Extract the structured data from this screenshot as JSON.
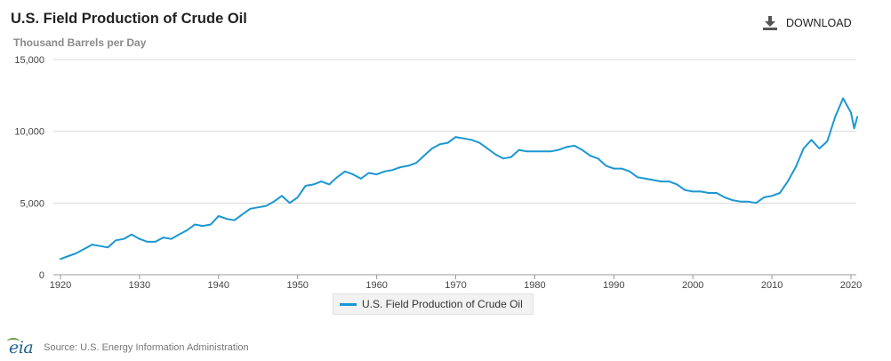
{
  "header": {
    "title": "U.S. Field Production of Crude Oil",
    "subtitle": "Thousand Barrels per Day",
    "download_label": "DOWNLOAD",
    "download_icon": "download-arrow-icon"
  },
  "footer": {
    "logo_text": "eia",
    "source_text": "Source: U.S. Energy Information Administration"
  },
  "colors": {
    "series": "#1a97d2",
    "grid": "#d8d8d8",
    "axis": "#999999"
  },
  "chart_data": {
    "type": "line",
    "title": "U.S. Field Production of Crude Oil",
    "ylabel": "Thousand Barrels per Day",
    "xlim": [
      1920,
      2020.8
    ],
    "ylim": [
      0,
      15000
    ],
    "x_ticks": [
      1920,
      1930,
      1940,
      1950,
      1960,
      1970,
      1980,
      1990,
      2000,
      2010,
      2020
    ],
    "y_ticks": [
      0,
      5000,
      10000,
      15000
    ],
    "y_tick_labels": [
      "0",
      "5,000",
      "10,000",
      "15,000"
    ],
    "grid": true,
    "legend": "bottom-center",
    "series": [
      {
        "name": "U.S. Field Production of Crude Oil",
        "x": [
          1920,
          1921,
          1922,
          1923,
          1924,
          1925,
          1926,
          1927,
          1928,
          1929,
          1930,
          1931,
          1932,
          1933,
          1934,
          1935,
          1936,
          1937,
          1938,
          1939,
          1940,
          1941,
          1942,
          1943,
          1944,
          1945,
          1946,
          1947,
          1948,
          1949,
          1950,
          1951,
          1952,
          1953,
          1954,
          1955,
          1956,
          1957,
          1958,
          1959,
          1960,
          1961,
          1962,
          1963,
          1964,
          1965,
          1966,
          1967,
          1968,
          1969,
          1970,
          1971,
          1972,
          1973,
          1974,
          1975,
          1976,
          1977,
          1978,
          1979,
          1980,
          1981,
          1982,
          1983,
          1984,
          1985,
          1986,
          1987,
          1988,
          1989,
          1990,
          1991,
          1992,
          1993,
          1994,
          1995,
          1996,
          1997,
          1998,
          1999,
          2000,
          2001,
          2002,
          2003,
          2004,
          2005,
          2006,
          2007,
          2008,
          2009,
          2010,
          2011,
          2012,
          2013,
          2014,
          2015,
          2016,
          2017,
          2018,
          2019,
          2020,
          2020.4,
          2020.8
        ],
        "values": [
          1100,
          1300,
          1500,
          1800,
          2100,
          2000,
          1900,
          2400,
          2500,
          2800,
          2500,
          2300,
          2300,
          2600,
          2500,
          2800,
          3100,
          3500,
          3400,
          3500,
          4100,
          3900,
          3800,
          4200,
          4600,
          4700,
          4800,
          5100,
          5500,
          5000,
          5400,
          6200,
          6300,
          6500,
          6300,
          6800,
          7200,
          7000,
          6700,
          7100,
          7000,
          7200,
          7300,
          7500,
          7600,
          7800,
          8300,
          8800,
          9100,
          9200,
          9600,
          9500,
          9400,
          9200,
          8800,
          8400,
          8100,
          8200,
          8700,
          8600,
          8600,
          8600,
          8600,
          8700,
          8900,
          9000,
          8700,
          8300,
          8100,
          7600,
          7400,
          7400,
          7200,
          6800,
          6700,
          6600,
          6500,
          6500,
          6300,
          5900,
          5800,
          5800,
          5700,
          5700,
          5400,
          5200,
          5100,
          5100,
          5000,
          5400,
          5500,
          5700,
          6500,
          7500,
          8800,
          9400,
          8800,
          9300,
          11000,
          12300,
          11300,
          10200,
          11000
        ]
      }
    ]
  }
}
